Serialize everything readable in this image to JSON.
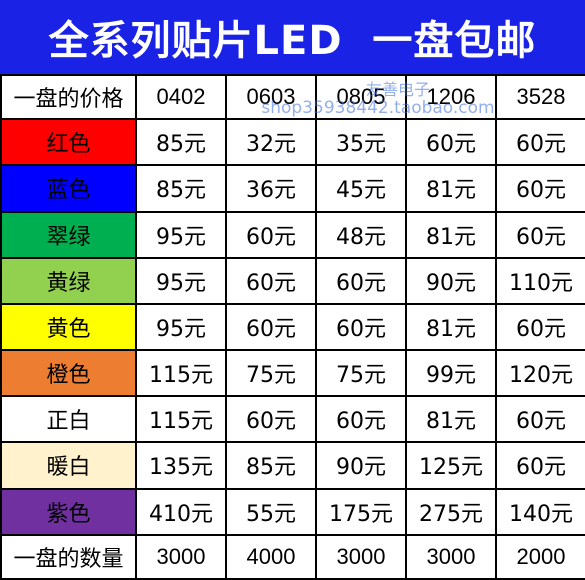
{
  "banner": {
    "title": "全系列贴片LED  一盘包邮",
    "background": "#1a22e6"
  },
  "table": {
    "header_label": "一盘的价格",
    "sizes": [
      "0402",
      "0603",
      "0805",
      "1206",
      "3528"
    ],
    "rows": [
      {
        "color": "红色",
        "bg": "#ff0000",
        "prices": [
          "85元",
          "32元",
          "35元",
          "60元",
          "60元"
        ]
      },
      {
        "color": "蓝色",
        "bg": "#0000ff",
        "prices": [
          "85元",
          "36元",
          "45元",
          "81元",
          "60元"
        ]
      },
      {
        "color": "翠绿",
        "bg": "#00b050",
        "prices": [
          "95元",
          "60元",
          "48元",
          "81元",
          "60元"
        ]
      },
      {
        "color": "黄绿",
        "bg": "#92d050",
        "prices": [
          "95元",
          "60元",
          "60元",
          "90元",
          "110元"
        ]
      },
      {
        "color": "黄色",
        "bg": "#ffff00",
        "prices": [
          "95元",
          "60元",
          "60元",
          "81元",
          "60元"
        ]
      },
      {
        "color": "橙色",
        "bg": "#ed7d31",
        "prices": [
          "115元",
          "75元",
          "75元",
          "99元",
          "120元"
        ]
      },
      {
        "color": "正白",
        "bg": "#ffffff",
        "prices": [
          "115元",
          "60元",
          "60元",
          "81元",
          "60元"
        ]
      },
      {
        "color": "暖白",
        "bg": "#fff2cc",
        "prices": [
          "135元",
          "85元",
          "90元",
          "125元",
          "60元"
        ]
      },
      {
        "color": "紫色",
        "bg": "#7030a0",
        "prices": [
          "410元",
          "55元",
          "175元",
          "275元",
          "140元"
        ]
      }
    ],
    "footer_label": "一盘的数量",
    "quantities": [
      "3000",
      "4000",
      "3000",
      "3000",
      "2000"
    ]
  },
  "watermark": {
    "name": "友善电子",
    "url": "shop35938442.taobao.com"
  }
}
